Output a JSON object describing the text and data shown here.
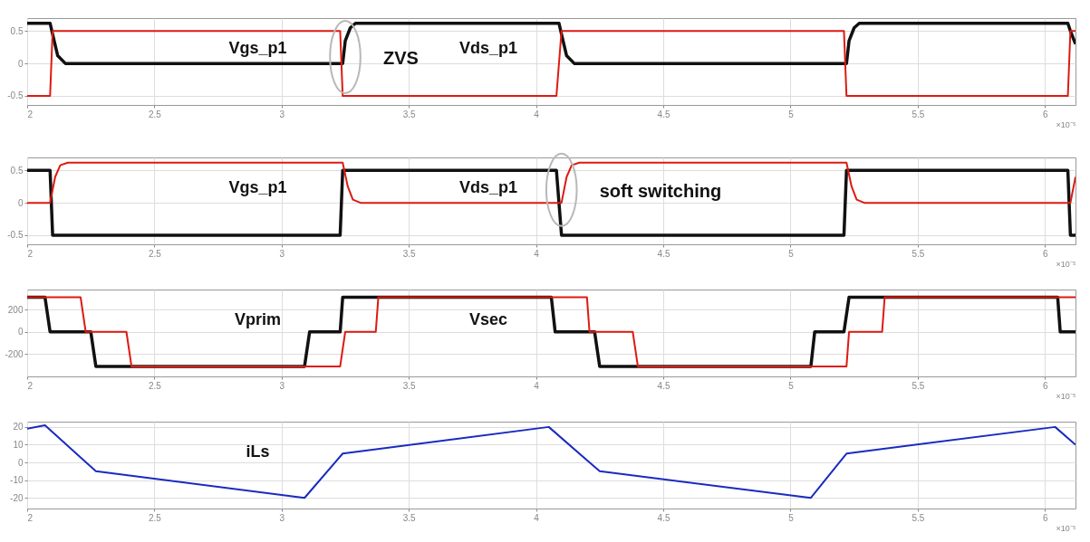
{
  "chart_data": [
    {
      "type": "line",
      "xlim": [
        2,
        6.12
      ],
      "xticks": [
        2,
        2.5,
        3,
        3.5,
        4,
        4.5,
        5,
        5.5,
        6
      ],
      "ylim": [
        -0.64,
        0.7
      ],
      "yticks": [
        -0.5,
        0,
        0.5
      ],
      "xlabel": "×10⁻⁵",
      "grid": true,
      "series": [
        {
          "color": "#111111",
          "x": [
            2,
            2.09,
            2.1,
            2.12,
            2.15,
            3.24,
            3.25,
            3.27,
            3.29,
            4.09,
            4.1,
            4.12,
            4.15,
            5.22,
            5.23,
            5.25,
            5.27,
            6.09,
            6.1,
            6.12
          ],
          "values": [
            0.62,
            0.62,
            0.45,
            0.12,
            0,
            0,
            0.35,
            0.55,
            0.62,
            0.62,
            0.45,
            0.12,
            0,
            0,
            0.35,
            0.55,
            0.62,
            0.62,
            0.5,
            0.3
          ]
        },
        {
          "color": "#dd1a12",
          "x": [
            2,
            2.09,
            2.1,
            3.23,
            3.24,
            4.08,
            4.1,
            5.21,
            5.22,
            6.09,
            6.1,
            6.12
          ],
          "values": [
            -0.5,
            -0.5,
            0.5,
            0.5,
            -0.5,
            -0.5,
            0.5,
            0.5,
            -0.5,
            -0.5,
            0.5,
            0.5
          ]
        }
      ],
      "annotations": [
        {
          "text": "ZVS",
          "x": 3.25,
          "y": 0.1
        },
        "Vgs_p1",
        "Vds_p1"
      ]
    },
    {
      "type": "line",
      "xlim": [
        2,
        6.12
      ],
      "xticks": [
        2,
        2.5,
        3,
        3.5,
        4,
        4.5,
        5,
        5.5,
        6
      ],
      "ylim": [
        -0.64,
        0.7
      ],
      "yticks": [
        -0.5,
        0,
        0.5
      ],
      "xlabel": "×10⁻⁵",
      "grid": true,
      "series": [
        {
          "color": "#111111",
          "x": [
            2,
            2.09,
            2.1,
            3.23,
            3.24,
            4.08,
            4.1,
            5.21,
            5.22,
            6.09,
            6.1,
            6.12
          ],
          "values": [
            0.5,
            0.5,
            -0.5,
            -0.5,
            0.5,
            0.5,
            -0.5,
            -0.5,
            0.5,
            0.5,
            -0.5,
            -0.5
          ]
        },
        {
          "color": "#dd1a12",
          "x": [
            2,
            2.09,
            2.11,
            2.13,
            2.16,
            3.24,
            3.26,
            3.28,
            3.31,
            4.1,
            4.12,
            4.14,
            4.17,
            5.22,
            5.24,
            5.26,
            5.29,
            6.1,
            6.12
          ],
          "values": [
            0,
            0,
            0.4,
            0.58,
            0.62,
            0.62,
            0.25,
            0.05,
            0,
            0,
            0.4,
            0.58,
            0.62,
            0.62,
            0.25,
            0.05,
            0,
            0,
            0.4
          ]
        }
      ],
      "annotations": [
        {
          "text": "soft switching",
          "x": 4.1,
          "y": 0.2
        },
        "Vgs_p1",
        "Vds_p1"
      ]
    },
    {
      "type": "line",
      "xlim": [
        2,
        6.12
      ],
      "xticks": [
        2,
        2.5,
        3,
        3.5,
        4,
        4.5,
        5,
        5.5,
        6
      ],
      "ylim": [
        -400,
        380
      ],
      "yticks": [
        -200,
        0,
        200
      ],
      "xlabel": "×10⁻⁵",
      "grid": true,
      "series": [
        {
          "color": "#111111",
          "x": [
            2,
            2.07,
            2.09,
            2.25,
            2.27,
            3.09,
            3.11,
            3.23,
            3.24,
            4.06,
            4.075,
            4.23,
            4.25,
            5.08,
            5.095,
            5.21,
            5.23,
            6.05,
            6.06,
            6.12
          ],
          "values": [
            310,
            310,
            0,
            0,
            -310,
            -310,
            0,
            0,
            310,
            310,
            0,
            0,
            -310,
            -310,
            0,
            0,
            310,
            310,
            0,
            0
          ]
        },
        {
          "color": "#dd1a12",
          "x": [
            2,
            2.21,
            2.23,
            2.39,
            2.41,
            3.23,
            3.25,
            3.37,
            3.38,
            4.2,
            4.21,
            4.38,
            4.4,
            5.22,
            5.23,
            5.36,
            5.37,
            6.12
          ],
          "values": [
            310,
            310,
            0,
            0,
            -310,
            -310,
            0,
            0,
            310,
            310,
            0,
            0,
            -310,
            -310,
            0,
            0,
            310,
            310
          ]
        }
      ],
      "annotations": [
        "Vprim",
        "Vsec"
      ]
    },
    {
      "type": "line",
      "xlim": [
        2,
        6.12
      ],
      "xticks": [
        2,
        2.5,
        3,
        3.5,
        4,
        4.5,
        5,
        5.5,
        6
      ],
      "ylim": [
        -26,
        23
      ],
      "yticks": [
        -20,
        -10,
        0,
        10,
        20
      ],
      "xlabel": "×10⁻⁵",
      "grid": true,
      "series": [
        {
          "color": "#1a2ac0",
          "x": [
            2,
            2.07,
            2.27,
            3.09,
            3.24,
            4.05,
            4.25,
            5.08,
            5.22,
            6.04,
            6.12
          ],
          "values": [
            19,
            21,
            -5,
            -20,
            5,
            20,
            -5,
            -20,
            5,
            20,
            10
          ]
        }
      ],
      "annotations": [
        "iLs"
      ]
    }
  ]
}
